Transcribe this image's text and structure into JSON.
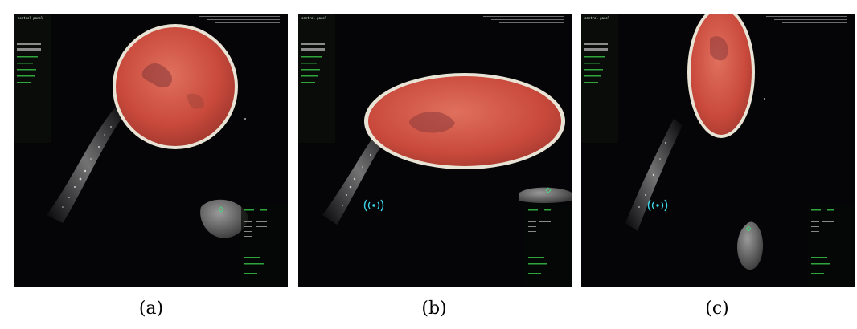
{
  "captions": {
    "a": "(a)",
    "b": "(b)",
    "c": "(c)"
  },
  "hud": {
    "title": "control panel",
    "lines": [
      "--- --- ---",
      "--- ---",
      "-- -- --"
    ]
  },
  "icons": {
    "refresh": "refresh-icon",
    "signal": "signal-icon",
    "reticle": "target-reticle-icon"
  },
  "colors": {
    "planet": "#c94a3c",
    "halo": "#f4efe0",
    "space": "#050507",
    "hud": "#6fd07a",
    "signal": "#3fd4e8"
  }
}
